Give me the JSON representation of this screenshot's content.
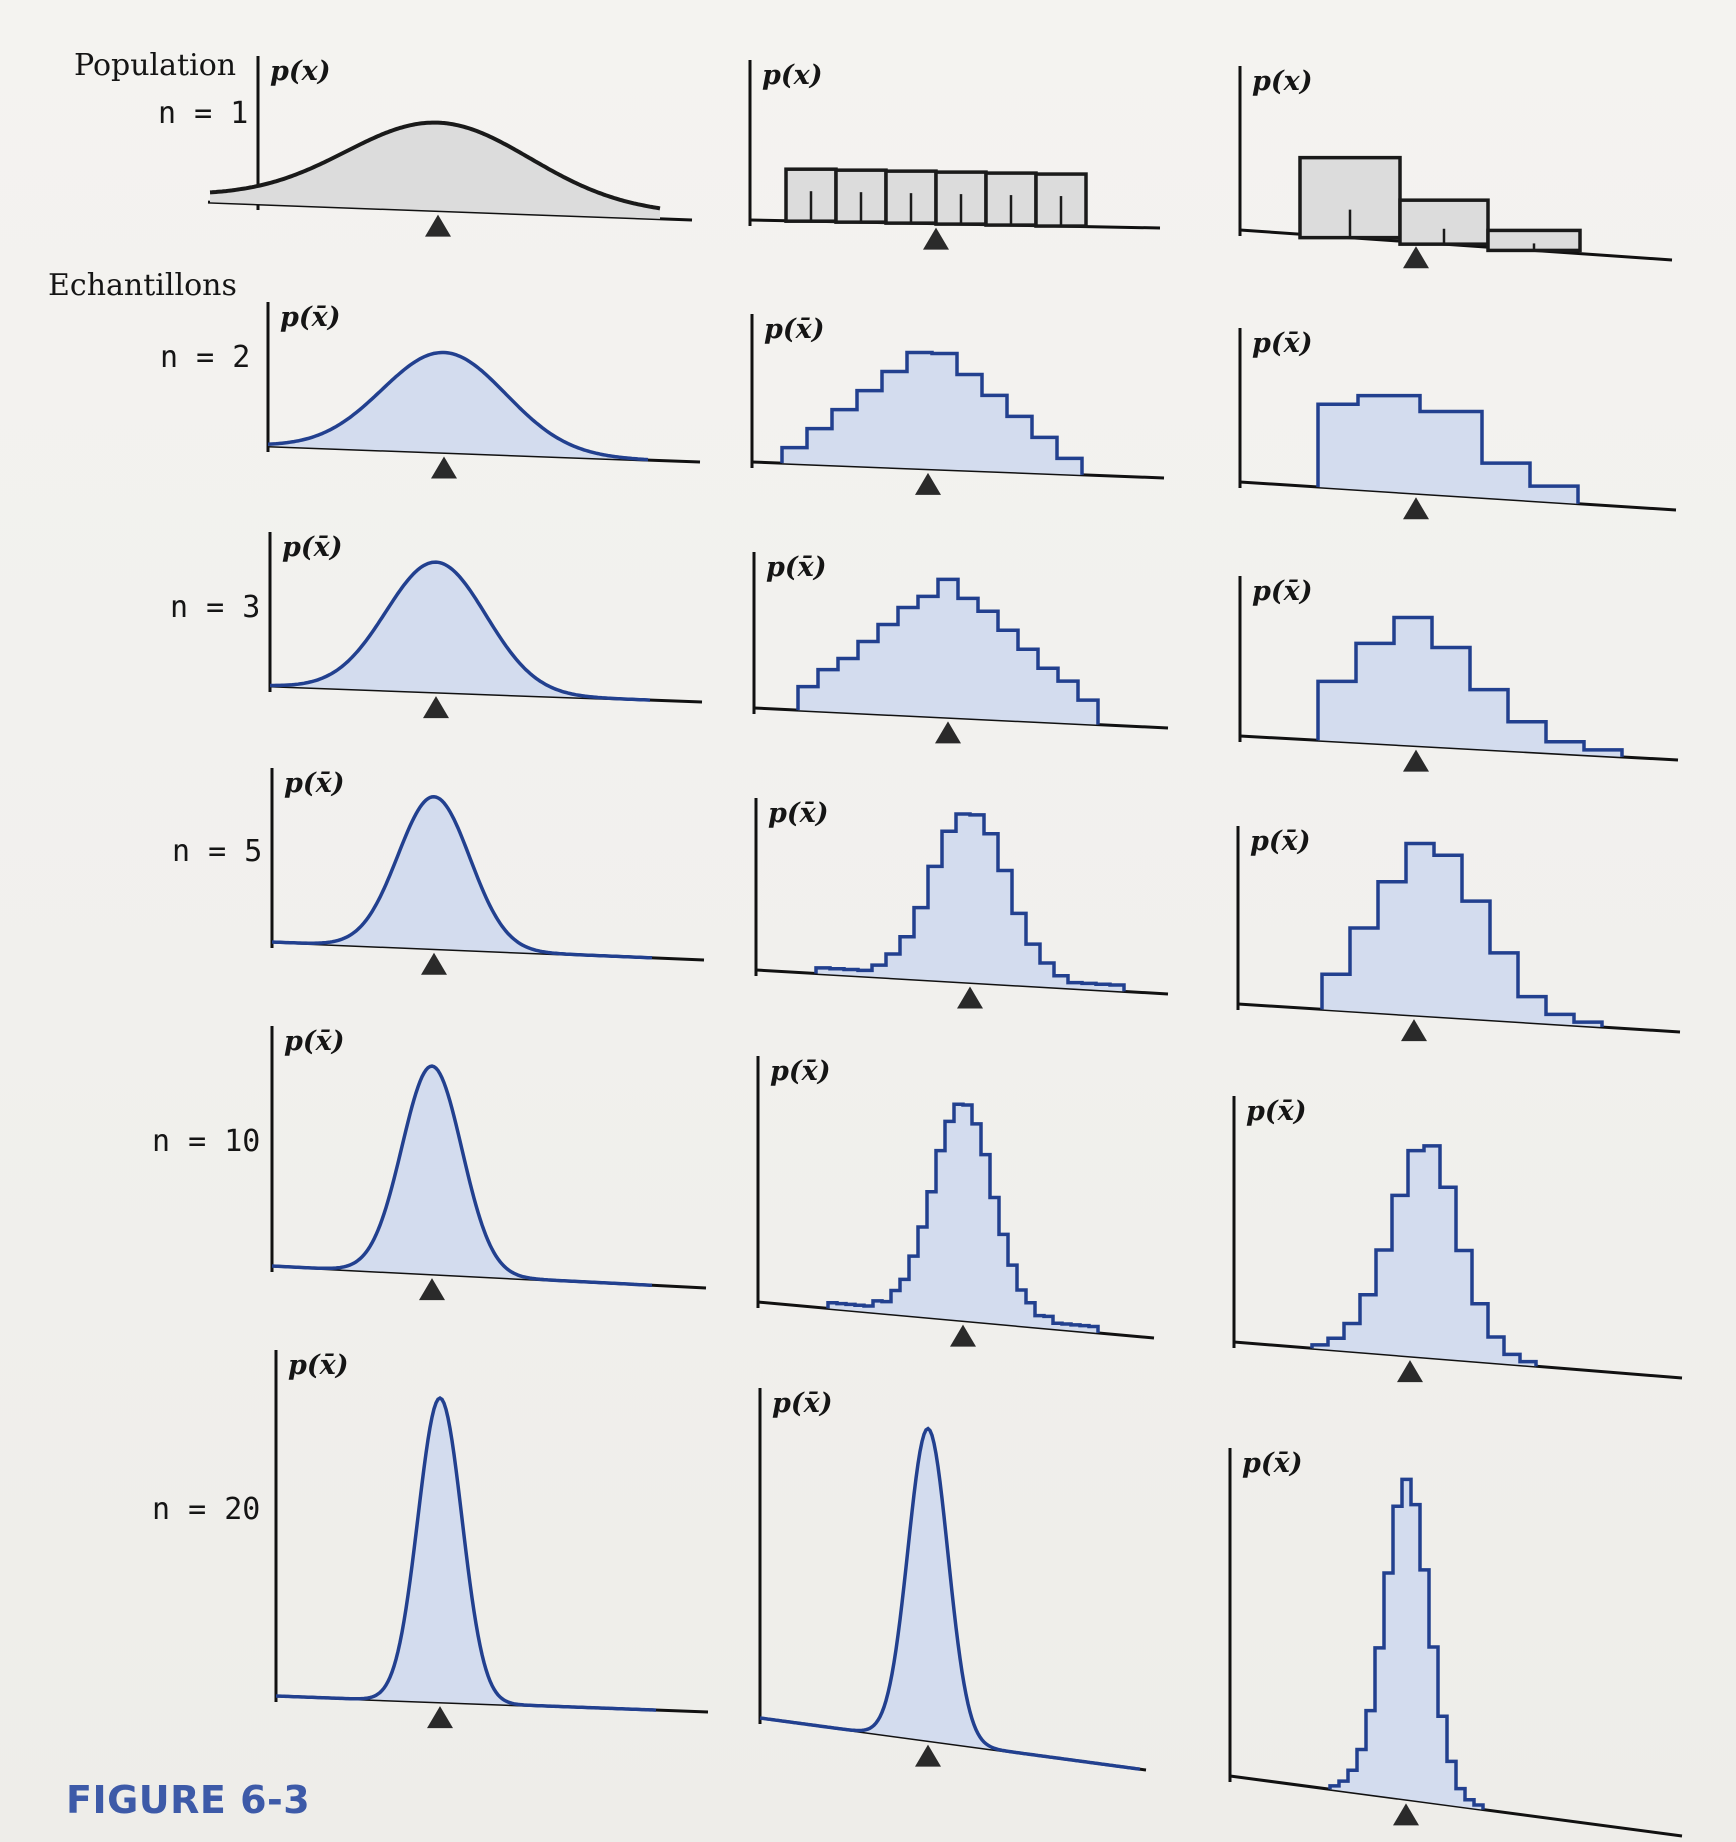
{
  "figure": {
    "caption": "FIGURE 6-3",
    "population_label": "Population",
    "samples_label": "Echantillons",
    "row_labels": [
      "n = 1",
      "n = 2",
      "n = 3",
      "n = 5",
      "n = 10",
      "n = 20"
    ],
    "population_axis_title": "p(x)",
    "sample_axis_title": "p(x̄)",
    "colors": {
      "population_stroke": "#1a1a1a",
      "population_fill": "#dcdcdc",
      "sample_stroke": "#22408f",
      "sample_fill": "#d3dcee",
      "axis": "#111111",
      "mean_marker": "#2a2a2a",
      "caption": "#3d5aa8"
    }
  },
  "chart_data": [
    {
      "type": "area",
      "column": "normale",
      "n": 1,
      "ylabel": "p(x)",
      "shape": "gaussian",
      "mean_marker": true
    },
    {
      "type": "bar",
      "column": "uniforme",
      "n": 1,
      "ylabel": "p(x)",
      "values": [
        1,
        1,
        1,
        1,
        1,
        1
      ],
      "mean_marker": true
    },
    {
      "type": "bar",
      "column": "asymetrique",
      "n": 1,
      "ylabel": "p(x)",
      "values": [
        3,
        2,
        1
      ],
      "mean_marker": true
    },
    {
      "type": "area",
      "column": "normale",
      "n": 2,
      "ylabel": "p(x̄)",
      "shape": "gaussian",
      "mean_marker": true
    },
    {
      "type": "bar",
      "column": "uniforme",
      "n": 2,
      "ylabel": "p(x̄)",
      "shape": "steps",
      "mean_marker": true
    },
    {
      "type": "bar",
      "column": "asymetrique",
      "n": 2,
      "ylabel": "p(x̄)",
      "shape": "steps",
      "mean_marker": true
    },
    {
      "type": "area",
      "column": "normale",
      "n": 3,
      "ylabel": "p(x̄)",
      "shape": "gaussian",
      "mean_marker": true
    },
    {
      "type": "bar",
      "column": "uniforme",
      "n": 3,
      "ylabel": "p(x̄)",
      "shape": "steps",
      "mean_marker": true
    },
    {
      "type": "bar",
      "column": "asymetrique",
      "n": 3,
      "ylabel": "p(x̄)",
      "shape": "steps",
      "mean_marker": true
    },
    {
      "type": "area",
      "column": "normale",
      "n": 5,
      "ylabel": "p(x̄)",
      "shape": "gaussian",
      "mean_marker": true
    },
    {
      "type": "bar",
      "column": "uniforme",
      "n": 5,
      "ylabel": "p(x̄)",
      "shape": "steps",
      "mean_marker": true
    },
    {
      "type": "bar",
      "column": "asymetrique",
      "n": 5,
      "ylabel": "p(x̄)",
      "shape": "steps",
      "mean_marker": true
    },
    {
      "type": "area",
      "column": "normale",
      "n": 10,
      "ylabel": "p(x̄)",
      "shape": "gaussian",
      "mean_marker": true
    },
    {
      "type": "bar",
      "column": "uniforme",
      "n": 10,
      "ylabel": "p(x̄)",
      "shape": "steps",
      "mean_marker": true
    },
    {
      "type": "bar",
      "column": "asymetrique",
      "n": 10,
      "ylabel": "p(x̄)",
      "shape": "steps",
      "mean_marker": true
    },
    {
      "type": "area",
      "column": "normale",
      "n": 20,
      "ylabel": "p(x̄)",
      "shape": "gaussian",
      "mean_marker": true
    },
    {
      "type": "area",
      "column": "uniforme",
      "n": 20,
      "ylabel": "p(x̄)",
      "shape": "gaussian",
      "mean_marker": true
    },
    {
      "type": "bar",
      "column": "asymetrique",
      "n": 20,
      "ylabel": "p(x̄)",
      "shape": "steps",
      "mean_marker": true
    }
  ]
}
